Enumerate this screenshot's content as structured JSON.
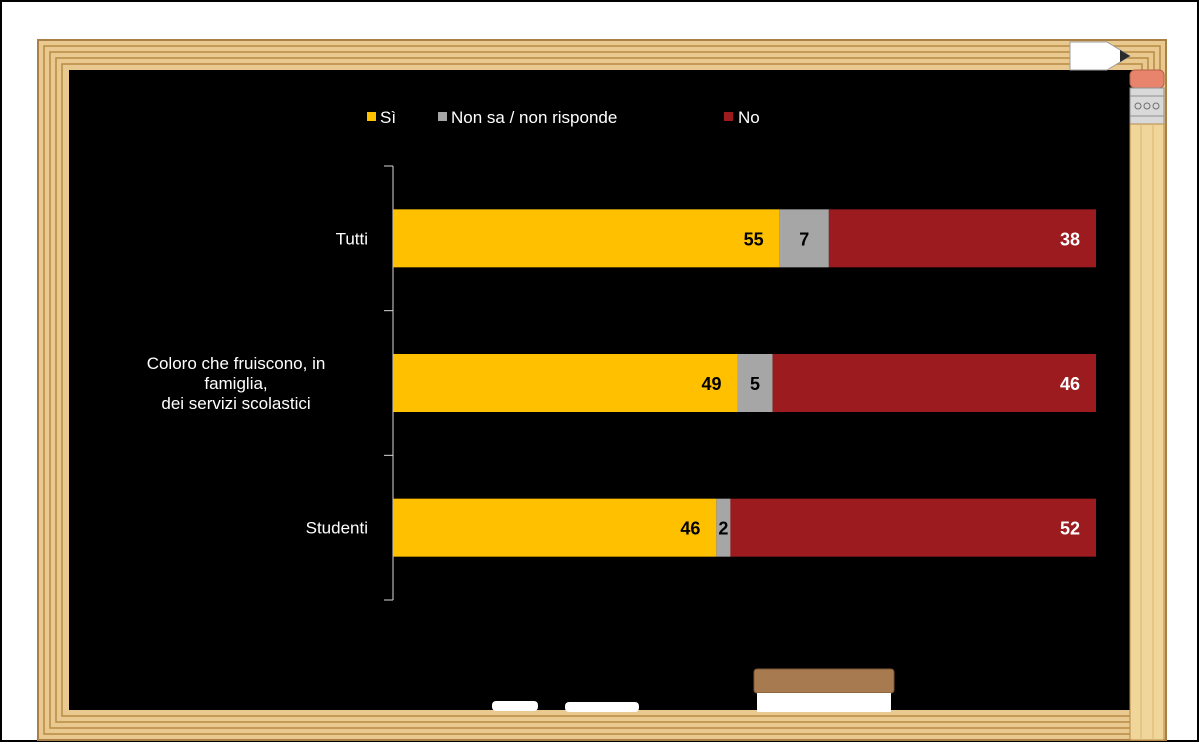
{
  "colors": {
    "si": "#FFC000",
    "non_sa": "#A6A6A6",
    "no": "#9B1B1E",
    "board": "#000000",
    "frame": "#E9C98F",
    "frame_line": "#B88A45",
    "text_light": "#FFFFFF",
    "value_dark": "#000000",
    "value_light": "#FFFFFF",
    "eraser_top": "#A87A4F"
  },
  "icons": [
    "pencil-icon",
    "chalk-icon",
    "eraser-icon"
  ],
  "chart_data": {
    "type": "bar",
    "orientation": "horizontal",
    "stacked": true,
    "percent_stacked": true,
    "categories": [
      [
        "Tutti"
      ],
      [
        "Coloro che fruiscono, in",
        "famiglia,",
        "dei servizi scolastici"
      ],
      [
        "Studenti"
      ]
    ],
    "series": [
      {
        "name": "Sì",
        "values": [
          55,
          49,
          46
        ]
      },
      {
        "name": "Non sa / non risponde",
        "values": [
          7,
          5,
          2
        ]
      },
      {
        "name": "No",
        "values": [
          38,
          46,
          52
        ]
      }
    ],
    "xlim": [
      0,
      100
    ],
    "legend_position": "top",
    "grid": false
  }
}
